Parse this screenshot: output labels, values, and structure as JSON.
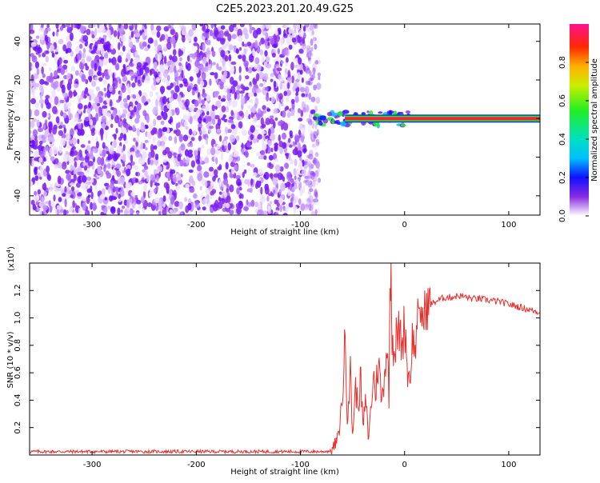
{
  "title": "C2E5.2023.201.20.49.G25",
  "chart_data": [
    {
      "type": "heatmap",
      "xlabel": "Height of straight line (km)",
      "ylabel": "Frequency (Hz)",
      "xlim": [
        -360,
        130
      ],
      "ylim": [
        -50,
        49
      ],
      "x_ticks": [
        -300,
        -200,
        -100,
        0,
        100
      ],
      "y_ticks": [
        -40,
        -20,
        0,
        20,
        40
      ],
      "colorbar": {
        "label": "Normalized spectral amplitude",
        "range": [
          0,
          1
        ],
        "ticks": [
          "0.0",
          "0.2",
          "0.4",
          "0.6",
          "0.8"
        ]
      },
      "regions": {
        "noise_x_range": [
          -360,
          -88
        ],
        "signal_x_range": [
          -88,
          130
        ],
        "signal_frequency_hz": 0
      }
    },
    {
      "type": "line",
      "xlabel": "Height of straight line (km)",
      "ylabel": "SNR (10 * v/v)",
      "y_multiplier": "(x10",
      "y_multiplier_exp": "4",
      "y_multiplier_close": ")",
      "xlim": [
        -360,
        130
      ],
      "ylim": [
        0,
        1.4
      ],
      "x_ticks": [
        -300,
        -200,
        -100,
        0,
        100
      ],
      "y_ticks": [
        "0.2",
        "0.4",
        "0.6",
        "0.8",
        "1.0",
        "1.2"
      ],
      "color": "#e8302e",
      "series": [
        {
          "x": [
            -360,
            -300,
            -250,
            -200,
            -150,
            -100,
            -80,
            -70,
            -64,
            -60,
            -57,
            -55,
            -52,
            -50,
            -47,
            -45,
            -42,
            -40,
            -37,
            -35,
            -32,
            -30,
            -28,
            -25,
            -22,
            -20,
            -17,
            -15,
            -14,
            -13,
            -12,
            -10,
            -8,
            -5,
            -2,
            0,
            3,
            5,
            8,
            10,
            12,
            14,
            16,
            18,
            20,
            25,
            30,
            35,
            40,
            45,
            50,
            55,
            60,
            65,
            70,
            80,
            90,
            100,
            110,
            120,
            130
          ],
          "y": [
            0.025,
            0.025,
            0.025,
            0.025,
            0.025,
            0.025,
            0.025,
            0.03,
            0.12,
            0.38,
            0.85,
            0.3,
            0.6,
            0.15,
            0.5,
            0.35,
            0.55,
            0.2,
            0.4,
            0.12,
            0.35,
            0.6,
            0.45,
            0.7,
            0.38,
            0.55,
            0.8,
            0.45,
            1.18,
            1.4,
            0.9,
            0.75,
            0.85,
            0.9,
            0.8,
            1.0,
            0.6,
            0.55,
            0.9,
            0.7,
            1.05,
            0.9,
            1.1,
            0.95,
            1.08,
            1.1,
            1.12,
            1.14,
            1.15,
            1.15,
            1.16,
            1.16,
            1.15,
            1.14,
            1.14,
            1.13,
            1.12,
            1.1,
            1.08,
            1.06,
            1.04
          ]
        }
      ]
    }
  ]
}
